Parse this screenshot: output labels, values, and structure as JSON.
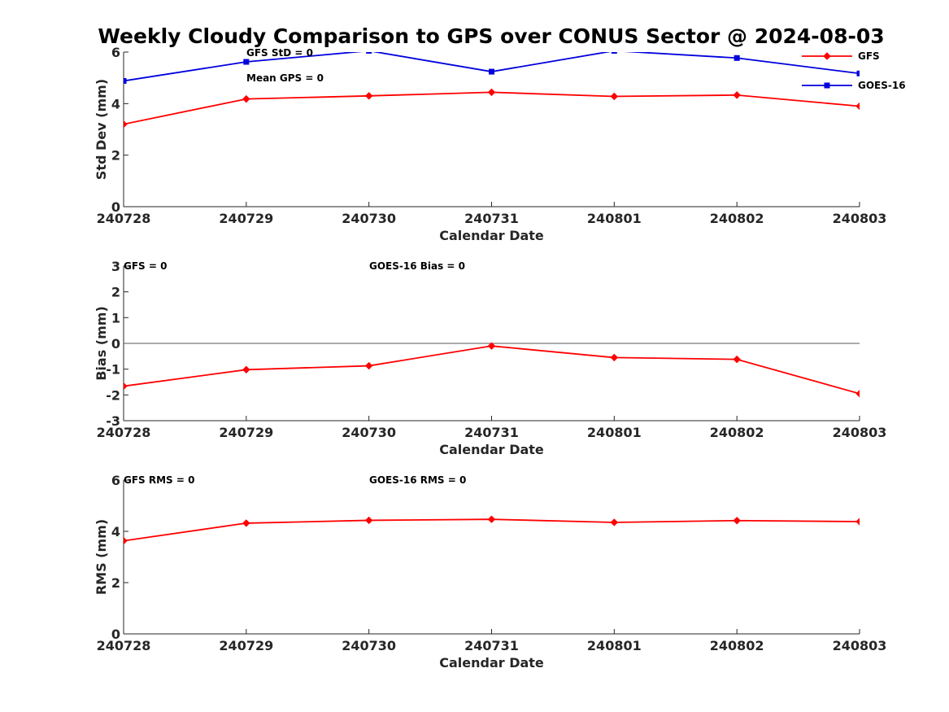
{
  "chart_data": {
    "title": "Weekly Cloudy Comparison to GPS over CONUS Sector @ 2024-08-03",
    "colors": {
      "GFS": "#ff0000",
      "GOES-16": "#0000dd",
      "zero_line": "#555555",
      "axis": "#262626"
    },
    "legend": {
      "placement": "top-right",
      "entries": [
        "GFS",
        "GOES-16"
      ]
    },
    "panels": [
      {
        "type": "line",
        "categories": [
          "240728",
          "240729",
          "240730",
          "240731",
          "240801",
          "240802",
          "240803"
        ],
        "xlabel": "Calendar Date",
        "ylabel": "Std Dev (mm)",
        "ylim": [
          0,
          6
        ],
        "yticks": [
          "0",
          "2",
          "4",
          "6"
        ],
        "zero_line": false,
        "annotations": [
          "GFS StD = 0",
          "Mean GPS = 0"
        ],
        "series": [
          {
            "name": "GFS",
            "marker": "diamond",
            "values": [
              3.2,
              4.18,
              4.3,
              4.44,
              4.28,
              4.33,
              3.9
            ]
          },
          {
            "name": "GOES-16",
            "marker": "square",
            "values": [
              4.88,
              5.62,
              6.05,
              5.24,
              6.05,
              5.77,
              5.17
            ]
          }
        ]
      },
      {
        "type": "line",
        "categories": [
          "240728",
          "240729",
          "240730",
          "240731",
          "240801",
          "240802",
          "240803"
        ],
        "xlabel": "Calendar Date",
        "ylabel": "Bias (mm)",
        "ylim": [
          -3,
          3
        ],
        "yticks": [
          "-3",
          "-2",
          "-1",
          "0",
          "1",
          "2",
          "3"
        ],
        "zero_line": true,
        "annotations": [
          "GFS = 0",
          "GOES-16 Bias  = 0"
        ],
        "series": [
          {
            "name": "GFS",
            "marker": "diamond",
            "values": [
              -1.66,
              -1.02,
              -0.87,
              -0.1,
              -0.55,
              -0.62,
              -1.95
            ]
          }
        ]
      },
      {
        "type": "line",
        "categories": [
          "240728",
          "240729",
          "240730",
          "240731",
          "240801",
          "240802",
          "240803"
        ],
        "xlabel": "Calendar Date",
        "ylabel": "RMS (mm)",
        "ylim": [
          0,
          6
        ],
        "yticks": [
          "0",
          "2",
          "4",
          "6"
        ],
        "zero_line": false,
        "annotations": [
          "GFS RMS = 0",
          "GOES-16 RMS = 0"
        ],
        "series": [
          {
            "name": "GFS",
            "marker": "diamond",
            "values": [
              3.63,
              4.32,
              4.43,
              4.47,
              4.35,
              4.42,
              4.38
            ]
          }
        ]
      }
    ]
  }
}
